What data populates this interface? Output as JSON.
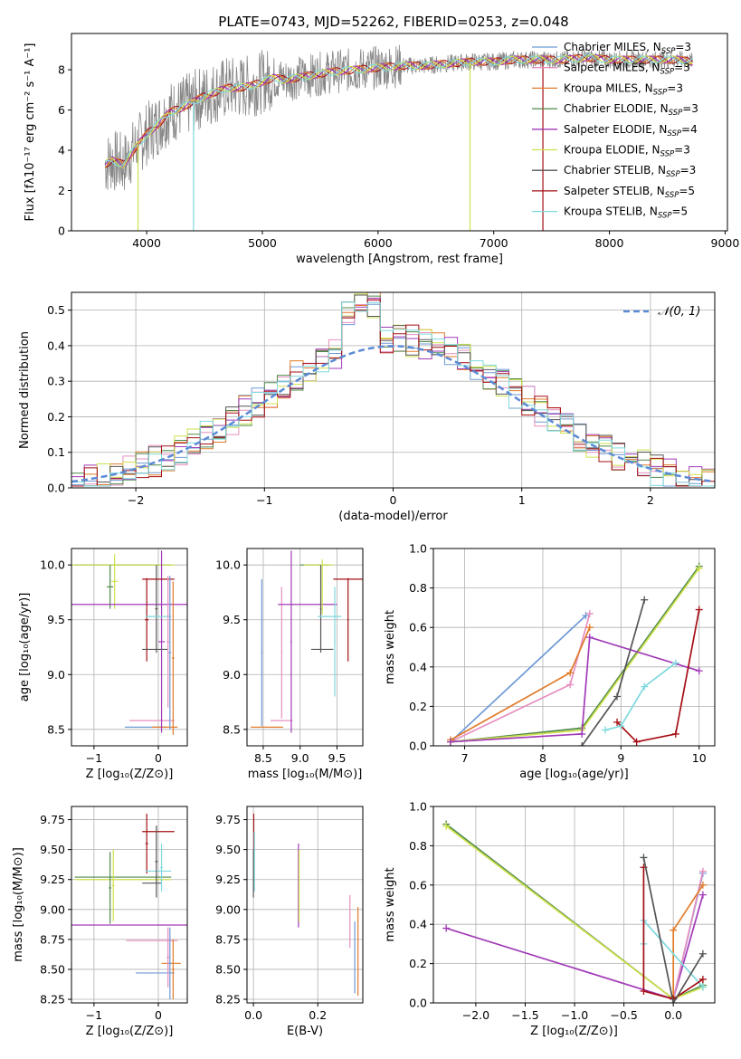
{
  "title": "PLATE=0743, MJD=52262, FIBERID=0253, z=0.048",
  "colors": {
    "chabrier_miles": "#6f9ad6",
    "salpeter_miles": "#e68fc0",
    "kroupa_miles": "#e07b2a",
    "chabrier_elodie": "#4f8a4a",
    "salpeter_elodie": "#a23ab8",
    "kroupa_elodie": "#cfe04c",
    "chabrier_stelib": "#555555",
    "salpeter_stelib": "#a50f15",
    "kroupa_stelib": "#7fd9de",
    "data": "#888888",
    "normal": "#5b8bd6"
  },
  "legend": [
    {
      "key": "chabrier_miles",
      "label": "Chabrier MILES, N",
      "sub": "SSP",
      "tail": "=3"
    },
    {
      "key": "salpeter_miles",
      "label": "Salpeter MILES, N",
      "sub": "SSP",
      "tail": "=3"
    },
    {
      "key": "kroupa_miles",
      "label": "Kroupa MILES, N",
      "sub": "SSP",
      "tail": "=3"
    },
    {
      "key": "chabrier_elodie",
      "label": "Chabrier ELODIE, N",
      "sub": "SSP",
      "tail": "=3"
    },
    {
      "key": "salpeter_elodie",
      "label": "Salpeter ELODIE, N",
      "sub": "SSP",
      "tail": "=4"
    },
    {
      "key": "kroupa_elodie",
      "label": "Kroupa ELODIE, N",
      "sub": "SSP",
      "tail": "=3"
    },
    {
      "key": "chabrier_stelib",
      "label": "Chabrier STELIB, N",
      "sub": "SSP",
      "tail": "=3"
    },
    {
      "key": "salpeter_stelib",
      "label": "Salpeter STELIB, N",
      "sub": "SSP",
      "tail": "=5"
    },
    {
      "key": "kroupa_stelib",
      "label": "Kroupa STELIB, N",
      "sub": "SSP",
      "tail": "=5"
    }
  ],
  "chart_data": [
    {
      "id": "spectrum",
      "type": "line",
      "xlabel": "wavelength [Angstrom, rest frame]",
      "ylabel": "Flux [fλ10⁻¹⁷ erg cm⁻² s⁻¹ A⁻¹]",
      "xlim": [
        3350,
        9020
      ],
      "ylim": [
        0,
        9.8
      ],
      "xticks": [
        4000,
        5000,
        6000,
        7000,
        8000,
        9000
      ],
      "yticks": [
        0,
        2,
        4,
        6,
        8
      ],
      "data_range": [
        3640,
        8720
      ],
      "continuum": [
        [
          3640,
          3.3
        ],
        [
          3700,
          3.5
        ],
        [
          3800,
          3.3
        ],
        [
          3900,
          4.1
        ],
        [
          4000,
          4.8
        ],
        [
          4100,
          5.3
        ],
        [
          4200,
          5.9
        ],
        [
          4300,
          6.1
        ],
        [
          4400,
          6.4
        ],
        [
          4500,
          6.7
        ],
        [
          4600,
          6.9
        ],
        [
          4700,
          7.1
        ],
        [
          4800,
          7.1
        ],
        [
          4900,
          7.2
        ],
        [
          5000,
          7.4
        ],
        [
          5100,
          7.6
        ],
        [
          5200,
          7.5
        ],
        [
          5400,
          7.7
        ],
        [
          5600,
          7.9
        ],
        [
          5800,
          8.0
        ],
        [
          6000,
          8.1
        ],
        [
          6200,
          8.2
        ],
        [
          6400,
          8.2
        ],
        [
          6600,
          8.3
        ],
        [
          6800,
          8.4
        ],
        [
          7000,
          8.4
        ],
        [
          7200,
          8.5
        ],
        [
          7400,
          8.5
        ],
        [
          7600,
          8.5
        ],
        [
          7800,
          8.6
        ],
        [
          8000,
          8.5
        ],
        [
          8200,
          8.5
        ],
        [
          8400,
          8.5
        ],
        [
          8600,
          8.5
        ],
        [
          8720,
          8.4
        ]
      ]
    },
    {
      "id": "residuals",
      "type": "histogram",
      "xlabel": "(data-model)/error",
      "ylabel": "Normed distribution",
      "xlim": [
        -2.5,
        2.5
      ],
      "ylim": [
        0,
        0.55
      ],
      "xticks": [
        -2,
        -1,
        0,
        1,
        2
      ],
      "yticks": [
        0.0,
        0.1,
        0.2,
        0.3,
        0.4,
        0.5
      ],
      "bin_width": 0.1,
      "reference_label": "𝒩(0, 1)",
      "grid": true
    },
    {
      "id": "age_vs_z",
      "type": "errorbar",
      "xlabel": "Z [log₁₀(Z/Z⊙)]",
      "ylabel": "age  [log₁₀(age/yr)]",
      "xlim": [
        -1.35,
        0.45
      ],
      "ylim": [
        8.35,
        10.15
      ],
      "xticks": [
        -1,
        0
      ],
      "yticks": [
        8.5,
        9.0,
        9.5,
        10.0
      ],
      "points": [
        {
          "s": "chabrier_miles",
          "x": -0.2,
          "xe": 0.32,
          "y": 8.52,
          "ye": 0.0
        },
        {
          "s": "kroupa_miles",
          "x": 0.1,
          "xe": 0.2,
          "y": 8.52,
          "ye": 0.0
        },
        {
          "s": "salpeter_miles",
          "x": -0.1,
          "xe": 0.35,
          "y": 8.58,
          "ye": 0.0
        },
        {
          "s": "chabrier_elodie",
          "x": -0.55,
          "xe": 0.75,
          "y": 10.0,
          "ye": 0.0
        },
        {
          "s": "kroupa_elodie",
          "x": -0.6,
          "xe": 0.85,
          "y": 10.0,
          "ye": 0.0
        },
        {
          "s": "chabrier_elodie",
          "x": -0.75,
          "xe": 0.05,
          "y": 9.8,
          "ye": 0.2
        },
        {
          "s": "kroupa_elodie",
          "x": -0.68,
          "xe": 0.05,
          "y": 9.85,
          "ye": 0.25
        },
        {
          "s": "salpeter_elodie",
          "x": -0.45,
          "xe": 0.95,
          "y": 9.64,
          "ye": 0.0
        },
        {
          "s": "salpeter_elodie",
          "x": 0.05,
          "xe": 0.05,
          "y": 9.3,
          "ye": 0.83
        },
        {
          "s": "chabrier_stelib",
          "x": -0.03,
          "xe": 0.02,
          "y": 9.6,
          "ye": 0.4
        },
        {
          "s": "salpeter_stelib",
          "x": 0.0,
          "xe": 0.25,
          "y": 9.87,
          "ye": 0.0
        },
        {
          "s": "salpeter_stelib",
          "x": -0.18,
          "xe": 0.03,
          "y": 9.5,
          "ye": 0.38
        },
        {
          "s": "kroupa_stelib",
          "x": 0.0,
          "xe": 0.2,
          "y": 9.53,
          "ye": 0.0
        },
        {
          "s": "chabrier_stelib",
          "x": -0.05,
          "xe": 0.2,
          "y": 9.23,
          "ye": 0.0
        },
        {
          "s": "chabrier_miles",
          "x": 0.18,
          "xe": 0.02,
          "y": 9.2,
          "ye": 0.7
        },
        {
          "s": "kroupa_miles",
          "x": 0.23,
          "xe": 0.02,
          "y": 9.15,
          "ye": 0.7
        },
        {
          "s": "salpeter_miles",
          "x": 0.15,
          "xe": 0.02,
          "y": 9.3,
          "ye": 0.6
        }
      ]
    },
    {
      "id": "age_vs_mass",
      "type": "errorbar",
      "xlabel": "mass [log₁₀(M/M⊙)]",
      "ylabel": "",
      "xlim": [
        8.28,
        9.85
      ],
      "ylim": [
        8.35,
        10.15
      ],
      "xticks": [
        8.5,
        9.0,
        9.5
      ],
      "yticks": [
        8.5,
        9.0,
        9.5,
        10.0
      ],
      "points": [
        {
          "s": "chabrier_miles",
          "x": 8.48,
          "xe": 0.01,
          "y": 9.2,
          "ye": 0.67
        },
        {
          "s": "kroupa_miles",
          "x": 8.55,
          "xe": 0.22,
          "y": 8.52,
          "ye": 0.0
        },
        {
          "s": "salpeter_miles",
          "x": 8.75,
          "xe": 0.15,
          "y": 8.58,
          "ye": 0.0
        },
        {
          "s": "salpeter_miles",
          "x": 8.75,
          "xe": 0.01,
          "y": 9.2,
          "ye": 0.6
        },
        {
          "s": "salpeter_elodie",
          "x": 8.88,
          "xe": 0.01,
          "y": 9.3,
          "ye": 0.83
        },
        {
          "s": "salpeter_elodie",
          "x": 9.1,
          "xe": 0.4,
          "y": 9.64,
          "ye": 0.0
        },
        {
          "s": "chabrier_elodie",
          "x": 9.2,
          "xe": 0.2,
          "y": 10.0,
          "ye": 0.0
        },
        {
          "s": "kroupa_elodie",
          "x": 9.25,
          "xe": 0.2,
          "y": 10.0,
          "ye": 0.0
        },
        {
          "s": "kroupa_elodie",
          "x": 9.3,
          "xe": 0.01,
          "y": 9.8,
          "ye": 0.25
        },
        {
          "s": "chabrier_stelib",
          "x": 9.3,
          "xe": 0.15,
          "y": 9.23,
          "ye": 0.0
        },
        {
          "s": "chabrier_stelib",
          "x": 9.28,
          "xe": 0.01,
          "y": 9.6,
          "ye": 0.4
        },
        {
          "s": "kroupa_stelib",
          "x": 9.4,
          "xe": 0.16,
          "y": 9.53,
          "ye": 0.0
        },
        {
          "s": "kroupa_stelib",
          "x": 9.47,
          "xe": 0.01,
          "y": 9.3,
          "ye": 0.5
        },
        {
          "s": "salpeter_stelib",
          "x": 9.65,
          "xe": 0.2,
          "y": 9.87,
          "ye": 0.0
        },
        {
          "s": "salpeter_stelib",
          "x": 9.65,
          "xe": 0.01,
          "y": 9.5,
          "ye": 0.38
        }
      ]
    },
    {
      "id": "mw_vs_age",
      "type": "line",
      "xlabel": "age  [log₁₀(age/yr)]",
      "ylabel": "mass weight",
      "xlim": [
        6.6,
        10.2
      ],
      "ylim": [
        0,
        1.0
      ],
      "xticks": [
        7,
        8,
        9,
        10
      ],
      "yticks": [
        0.0,
        0.2,
        0.4,
        0.6,
        0.8,
        1.0
      ],
      "grid": true,
      "series": [
        {
          "s": "chabrier_miles",
          "x": [
            6.82,
            8.55
          ],
          "y": [
            0.02,
            0.66
          ]
        },
        {
          "s": "salpeter_miles",
          "x": [
            6.82,
            8.35,
            8.6
          ],
          "y": [
            0.02,
            0.31,
            0.67
          ]
        },
        {
          "s": "kroupa_miles",
          "x": [
            6.82,
            8.35,
            8.6
          ],
          "y": [
            0.03,
            0.37,
            0.6
          ]
        },
        {
          "s": "chabrier_elodie",
          "x": [
            6.82,
            8.5,
            10.0
          ],
          "y": [
            0.02,
            0.09,
            0.91
          ]
        },
        {
          "s": "kroupa_elodie",
          "x": [
            6.82,
            8.5,
            10.0
          ],
          "y": [
            0.02,
            0.08,
            0.9
          ]
        },
        {
          "s": "salpeter_elodie",
          "x": [
            6.82,
            8.5,
            8.6,
            10.0
          ],
          "y": [
            0.02,
            0.06,
            0.55,
            0.38
          ]
        },
        {
          "s": "chabrier_stelib",
          "x": [
            8.5,
            8.95,
            9.3
          ],
          "y": [
            0.0,
            0.25,
            0.74
          ]
        },
        {
          "s": "salpeter_stelib",
          "x": [
            8.95,
            9.2,
            9.7,
            10.0
          ],
          "y": [
            0.12,
            0.02,
            0.06,
            0.69
          ]
        },
        {
          "s": "kroupa_stelib",
          "x": [
            8.8,
            9.0,
            9.3,
            9.7
          ],
          "y": [
            0.08,
            0.1,
            0.3,
            0.42
          ]
        }
      ]
    },
    {
      "id": "mass_vs_z",
      "type": "errorbar",
      "xlabel": "Z [log₁₀(Z/Z⊙)]",
      "ylabel": "mass [log₁₀(M/M⊙)]",
      "xlim": [
        -1.35,
        0.45
      ],
      "ylim": [
        8.22,
        9.86
      ],
      "xticks": [
        -1,
        0
      ],
      "yticks": [
        8.25,
        8.5,
        8.75,
        9.0,
        9.25,
        9.5,
        9.75
      ],
      "points": [
        {
          "s": "chabrier_miles",
          "x": -0.05,
          "xe": 0.3,
          "y": 8.47,
          "ye": 0.0
        },
        {
          "s": "kroupa_miles",
          "x": 0.2,
          "xe": 0.15,
          "y": 8.55,
          "ye": 0.0
        },
        {
          "s": "salpeter_miles",
          "x": -0.1,
          "xe": 0.4,
          "y": 8.74,
          "ye": 0.0
        },
        {
          "s": "salpeter_miles",
          "x": 0.15,
          "xe": 0.02,
          "y": 8.6,
          "ye": 0.25
        },
        {
          "s": "chabrier_miles",
          "x": 0.18,
          "xe": 0.02,
          "y": 8.55,
          "ye": 0.3
        },
        {
          "s": "kroupa_miles",
          "x": 0.23,
          "xe": 0.02,
          "y": 8.5,
          "ye": 0.25
        },
        {
          "s": "salpeter_elodie",
          "x": -0.45,
          "xe": 0.95,
          "y": 8.87,
          "ye": 0.0
        },
        {
          "s": "chabrier_elodie",
          "x": -0.55,
          "xe": 0.75,
          "y": 9.27,
          "ye": 0.0
        },
        {
          "s": "kroupa_elodie",
          "x": -0.55,
          "xe": 0.75,
          "y": 9.25,
          "ye": 0.0
        },
        {
          "s": "chabrier_elodie",
          "x": -0.75,
          "xe": 0.02,
          "y": 9.18,
          "ye": 0.3
        },
        {
          "s": "kroupa_elodie",
          "x": -0.7,
          "xe": 0.02,
          "y": 9.2,
          "ye": 0.3
        },
        {
          "s": "salpeter_stelib",
          "x": 0.0,
          "xe": 0.25,
          "y": 9.65,
          "ye": 0.0
        },
        {
          "s": "salpeter_stelib",
          "x": -0.18,
          "xe": 0.02,
          "y": 9.55,
          "ye": 0.25
        },
        {
          "s": "kroupa_stelib",
          "x": 0.0,
          "xe": 0.2,
          "y": 9.32,
          "ye": 0.0
        },
        {
          "s": "chabrier_stelib",
          "x": -0.1,
          "xe": 0.15,
          "y": 9.22,
          "ye": 0.0
        },
        {
          "s": "chabrier_stelib",
          "x": -0.03,
          "xe": 0.02,
          "y": 9.4,
          "ye": 0.3
        },
        {
          "s": "kroupa_stelib",
          "x": 0.05,
          "xe": 0.02,
          "y": 9.35,
          "ye": 0.2
        }
      ]
    },
    {
      "id": "mass_vs_ebv",
      "type": "errorbar",
      "xlabel": "E(B-V)",
      "ylabel": "",
      "xlim": [
        -0.02,
        0.34
      ],
      "ylim": [
        8.22,
        9.86
      ],
      "xticks": [
        0.0,
        0.2
      ],
      "yticks": [
        8.25,
        8.5,
        8.75,
        9.0,
        9.25,
        9.5,
        9.75
      ],
      "points": [
        {
          "s": "salpeter_stelib",
          "x": 0.001,
          "xe": 0.0,
          "y": 9.65,
          "ye": 0.15
        },
        {
          "s": "kroupa_stelib",
          "x": 0.003,
          "xe": 0.0,
          "y": 9.4,
          "ye": 0.25
        },
        {
          "s": "chabrier_stelib",
          "x": 0.0,
          "xe": 0.0,
          "y": 9.3,
          "ye": 0.2
        },
        {
          "s": "salpeter_elodie",
          "x": 0.14,
          "xe": 0.0,
          "y": 9.2,
          "ye": 0.35
        },
        {
          "s": "kroupa_elodie",
          "x": 0.142,
          "xe": 0.0,
          "y": 9.2,
          "ye": 0.3
        },
        {
          "s": "salpeter_miles",
          "x": 0.3,
          "xe": 0.0,
          "y": 8.9,
          "ye": 0.22
        },
        {
          "s": "chabrier_miles",
          "x": 0.315,
          "xe": 0.0,
          "y": 8.6,
          "ye": 0.3
        },
        {
          "s": "kroupa_miles",
          "x": 0.325,
          "xe": 0.0,
          "y": 8.65,
          "ye": 0.37
        }
      ]
    },
    {
      "id": "mw_vs_z",
      "type": "line",
      "xlabel": "Z [log₁₀(Z/Z⊙)]",
      "ylabel": "mass weight",
      "xlim": [
        -2.43,
        0.42
      ],
      "ylim": [
        0,
        1.0
      ],
      "xticks": [
        -2.0,
        -1.5,
        -1.0,
        -0.5,
        0.0
      ],
      "yticks": [
        0.0,
        0.2,
        0.4,
        0.6,
        0.8,
        1.0
      ],
      "grid": true,
      "series": [
        {
          "s": "chabrier_elodie",
          "x": [
            -2.3,
            0.0,
            0.3
          ],
          "y": [
            0.91,
            0.02,
            0.09
          ]
        },
        {
          "s": "kroupa_elodie",
          "x": [
            -2.3,
            0.0,
            0.3
          ],
          "y": [
            0.9,
            0.02,
            0.08
          ]
        },
        {
          "s": "salpeter_elodie",
          "x": [
            -2.3,
            0.0,
            0.3
          ],
          "y": [
            0.38,
            0.02,
            0.55
          ]
        },
        {
          "s": "chabrier_miles",
          "x": [
            0.0,
            0.3
          ],
          "y": [
            0.02,
            0.66
          ]
        },
        {
          "s": "salpeter_miles",
          "x": [
            0.0,
            0.3
          ],
          "y": [
            0.02,
            0.67
          ]
        },
        {
          "s": "kroupa_miles",
          "x": [
            0.0,
            0.0,
            0.3
          ],
          "y": [
            0.03,
            0.37,
            0.6
          ]
        },
        {
          "s": "kroupa_stelib",
          "x": [
            -0.3,
            -0.3,
            0.3
          ],
          "y": [
            0.3,
            0.42,
            0.08
          ]
        },
        {
          "s": "salpeter_stelib",
          "x": [
            -0.3,
            -0.3,
            0.0,
            0.3
          ],
          "y": [
            0.69,
            0.06,
            0.02,
            0.12
          ]
        },
        {
          "s": "chabrier_stelib",
          "x": [
            -0.3,
            0.0,
            0.3
          ],
          "y": [
            0.74,
            0.0,
            0.25
          ]
        }
      ]
    }
  ]
}
